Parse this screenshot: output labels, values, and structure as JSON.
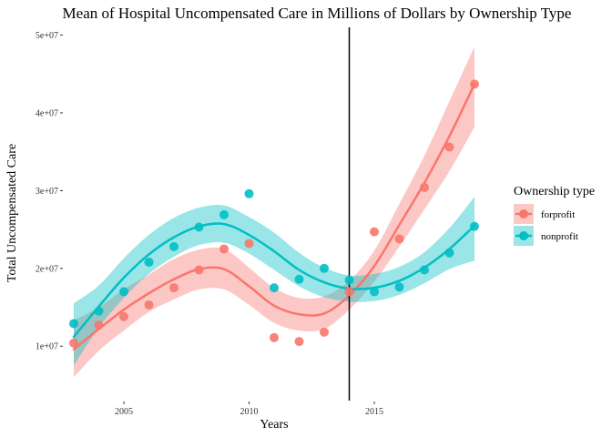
{
  "chart_data": {
    "type": "scatter",
    "title": "Mean of Hospital Uncompensated Care in Millions of Dollars by Ownership Type",
    "xlabel": "Years",
    "ylabel": "Total Uncompensated Care",
    "xlim": [
      2002.6,
      2019.4
    ],
    "ylim": [
      3000000,
      51000000
    ],
    "x_ticks": [
      2005,
      2010,
      2015
    ],
    "y_ticks": [
      10000000,
      20000000,
      30000000,
      40000000,
      50000000
    ],
    "x_tick_labels": [
      "2005",
      "2010",
      "2015"
    ],
    "y_tick_labels": [
      "1e+07",
      "2e+07",
      "3e+07",
      "4e+07",
      "5e+07"
    ],
    "vline_x": 2014,
    "grid": false,
    "legend": {
      "title": "Ownership type",
      "position": "right"
    },
    "x": [
      2003,
      2004,
      2005,
      2006,
      2007,
      2008,
      2009,
      2010,
      2011,
      2012,
      2013,
      2014,
      2015,
      2016,
      2017,
      2018,
      2019
    ],
    "series": [
      {
        "name": "forprofit",
        "color": "#F8766D",
        "values": [
          10400000,
          12700000,
          13800000,
          15300000,
          17500000,
          19800000,
          22500000,
          23200000,
          11100000,
          10600000,
          11800000,
          17000000,
          24700000,
          23800000,
          30400000,
          35600000,
          43700000
        ],
        "fit": [
          9600000,
          12200000,
          14700000,
          16800000,
          18600000,
          19900000,
          19900000,
          17700000,
          15200000,
          14100000,
          14200000,
          16500000,
          20300000,
          25600000,
          31000000,
          37000000,
          43700000
        ],
        "ci_lower": [
          6000000,
          9400000,
          12000000,
          14400000,
          16000000,
          17300000,
          17300000,
          15300000,
          13000000,
          12000000,
          12200000,
          14700000,
          18300000,
          22800000,
          27600000,
          32500000,
          38200000
        ],
        "ci_upper": [
          13300000,
          15000000,
          17300000,
          19200000,
          21200000,
          22400000,
          22500000,
          20100000,
          17500000,
          16200000,
          16400000,
          18400000,
          22300000,
          28300000,
          34500000,
          41500000,
          48500000
        ]
      },
      {
        "name": "nonprofit",
        "color": "#00BFC4",
        "values": [
          12900000,
          14500000,
          17000000,
          20800000,
          22800000,
          25300000,
          26900000,
          29600000,
          17500000,
          18600000,
          20000000,
          18500000,
          17000000,
          17600000,
          19800000,
          22000000,
          25400000
        ],
        "fit": [
          11200000,
          15100000,
          18800000,
          21800000,
          24000000,
          25400000,
          25700000,
          24300000,
          22200000,
          19800000,
          18200000,
          17400000,
          17500000,
          18400000,
          20100000,
          22500000,
          25500000
        ],
        "ci_lower": [
          7500000,
          12400000,
          16200000,
          19300000,
          21500000,
          23000000,
          23300000,
          21900000,
          19800000,
          17700000,
          16300000,
          15700000,
          15800000,
          16600000,
          18100000,
          19900000,
          21000000
        ],
        "ci_upper": [
          15500000,
          17800000,
          21300000,
          24300000,
          26500000,
          27800000,
          28100000,
          26600000,
          24600000,
          22000000,
          20100000,
          19100000,
          19300000,
          20200000,
          22100000,
          25200000,
          29200000
        ]
      }
    ]
  }
}
